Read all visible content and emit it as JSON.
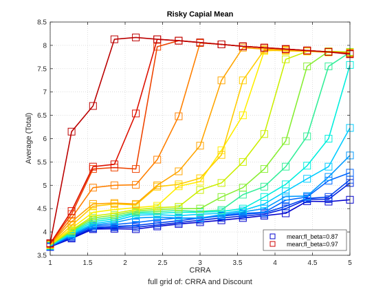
{
  "chart_data": {
    "type": "line",
    "title": "Risky Capial Mean",
    "xlabel": "CRRA",
    "ylabel": "Average (Total)",
    "caption": "full grid of: CRRA and Discount",
    "xlim": [
      1,
      5
    ],
    "ylim": [
      3.5,
      8.5
    ],
    "xticks": [
      "1",
      "1.5",
      "2",
      "2.5",
      "3",
      "3.5",
      "4",
      "4.5",
      "5"
    ],
    "yticks": [
      "3.5",
      "4",
      "4.5",
      "5",
      "5.5",
      "6",
      "6.5",
      "7",
      "7.5",
      "8",
      "8.5"
    ],
    "grid": "dotted",
    "legend_position": "bottom-right",
    "legend": [
      {
        "label": "mean;fl_beta=0.87",
        "color": "#0000cc"
      },
      {
        "label": "mean;fl_beta=0.97",
        "color": "#cc0000"
      }
    ],
    "marker": "square",
    "x": [
      1,
      1.2857,
      1.5714,
      1.8571,
      2.1429,
      2.4286,
      2.7143,
      3,
      3.2857,
      3.5714,
      3.8571,
      4.1429,
      4.4286,
      4.7143,
      5
    ],
    "series": [
      {
        "color": "#0000cc",
        "values": [
          3.68,
          3.86,
          4.06,
          4.07,
          4.06,
          4.12,
          4.17,
          4.21,
          4.25,
          4.3,
          4.35,
          4.4,
          4.66,
          4.65,
          4.69
        ]
      },
      {
        "color": "#0022dd",
        "values": [
          3.68,
          3.88,
          4.08,
          4.1,
          4.1,
          4.15,
          4.2,
          4.25,
          4.3,
          4.34,
          4.38,
          4.5,
          4.7,
          4.7,
          5.05
        ]
      },
      {
        "color": "#0044ee",
        "values": [
          3.69,
          3.9,
          4.1,
          4.12,
          4.14,
          4.19,
          4.24,
          4.3,
          4.34,
          4.38,
          4.41,
          4.55,
          4.72,
          4.75,
          5.12
        ]
      },
      {
        "color": "#0066ff",
        "values": [
          3.69,
          3.92,
          4.13,
          4.16,
          4.2,
          4.26,
          4.3,
          4.29,
          4.35,
          4.4,
          4.42,
          4.68,
          4.75,
          5.1,
          5.27
        ]
      },
      {
        "color": "#0099ff",
        "values": [
          3.7,
          3.94,
          4.15,
          4.2,
          4.3,
          4.32,
          4.3,
          4.3,
          4.37,
          4.43,
          4.5,
          4.76,
          4.77,
          5.18,
          5.64
        ]
      },
      {
        "color": "#00ccff",
        "values": [
          3.7,
          3.96,
          4.18,
          4.24,
          4.36,
          4.37,
          4.35,
          4.38,
          4.4,
          4.46,
          4.6,
          4.87,
          5.14,
          5.4,
          6.23
        ]
      },
      {
        "color": "#00eedd",
        "values": [
          3.71,
          3.98,
          4.22,
          4.28,
          4.4,
          4.4,
          4.42,
          4.42,
          4.44,
          4.5,
          4.75,
          5.02,
          5.42,
          6.0,
          7.58
        ]
      },
      {
        "color": "#33ee99",
        "values": [
          3.71,
          4.0,
          4.26,
          4.32,
          4.42,
          4.44,
          4.46,
          4.44,
          4.47,
          4.8,
          4.97,
          5.4,
          6.05,
          7.55,
          7.85
        ]
      },
      {
        "color": "#88ee33",
        "values": [
          3.72,
          4.02,
          4.3,
          4.36,
          4.45,
          4.48,
          4.5,
          4.5,
          4.75,
          4.95,
          5.35,
          5.95,
          7.55,
          7.87,
          7.86
        ]
      },
      {
        "color": "#ccee00",
        "values": [
          3.72,
          4.04,
          4.34,
          4.4,
          4.48,
          4.52,
          4.54,
          4.9,
          5.05,
          5.5,
          6.1,
          7.7,
          7.87,
          7.87,
          7.85
        ]
      },
      {
        "color": "#ffee00",
        "values": [
          3.73,
          4.08,
          4.42,
          4.48,
          4.52,
          4.56,
          4.98,
          5.08,
          5.75,
          6.5,
          7.88,
          7.9,
          7.88,
          7.86,
          7.84
        ]
      },
      {
        "color": "#ffcc00",
        "values": [
          3.73,
          4.14,
          4.55,
          4.6,
          4.58,
          4.97,
          5.02,
          5.15,
          5.65,
          7.25,
          7.9,
          7.88,
          7.87,
          7.85,
          7.83
        ]
      },
      {
        "color": "#ffa500",
        "values": [
          3.74,
          4.22,
          4.6,
          4.62,
          4.6,
          5.0,
          5.3,
          5.85,
          7.25,
          7.95,
          7.92,
          7.9,
          7.88,
          7.86,
          7.84
        ]
      },
      {
        "color": "#ff8000",
        "values": [
          3.74,
          4.3,
          4.95,
          5.0,
          5.01,
          5.55,
          6.48,
          8.05,
          8.02,
          7.98,
          7.95,
          7.92,
          7.89,
          7.86,
          7.83
        ]
      },
      {
        "color": "#ee4400",
        "values": [
          3.75,
          4.38,
          5.35,
          5.38,
          5.35,
          7.97,
          8.1,
          8.06,
          8.02,
          7.98,
          7.95,
          7.92,
          7.89,
          7.86,
          7.82
        ]
      },
      {
        "color": "#dd1100",
        "values": [
          3.75,
          4.45,
          5.4,
          5.45,
          6.54,
          8.13,
          8.1,
          8.06,
          8.02,
          7.98,
          7.95,
          7.92,
          7.89,
          7.86,
          7.82
        ]
      },
      {
        "color": "#bb0000",
        "values": [
          3.76,
          6.15,
          6.7,
          8.13,
          8.17,
          8.13,
          8.1,
          8.06,
          8.02,
          7.98,
          7.95,
          7.92,
          7.89,
          7.86,
          7.81
        ]
      }
    ]
  }
}
